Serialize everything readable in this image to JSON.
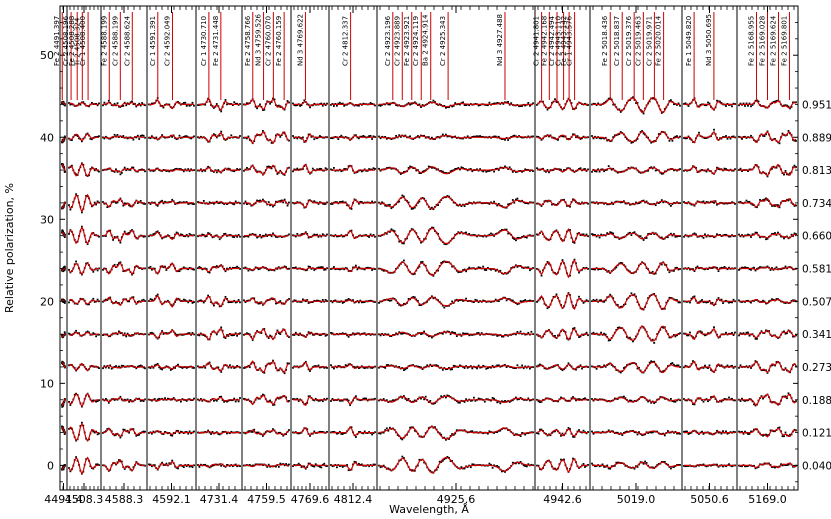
{
  "chart_data": {
    "type": "scatter",
    "title": "",
    "xlabel": "Wavelength, Å",
    "ylabel": "Relative polarization, %",
    "ylim": [
      -3,
      56
    ],
    "y_ticks": [
      0,
      10,
      20,
      30,
      40,
      50
    ],
    "grid": false,
    "legend": "none",
    "colors": {
      "observed": "#000000",
      "model": "#cc0000",
      "line_marker": "#cc0000",
      "frame": "#000000"
    },
    "phases": [
      "0.040",
      "0.121",
      "0.188",
      "0.273",
      "0.341",
      "0.507",
      "0.581",
      "0.660",
      "0.734",
      "0.813",
      "0.889",
      "0.951"
    ],
    "offsets": [
      0,
      4,
      8,
      12,
      16,
      20,
      24,
      28,
      32,
      36,
      40,
      44
    ],
    "panels": [
      {
        "label": "4491.4",
        "lines": [
          {
            "text": "Fe 2 4491.397",
            "rel": 0.32
          }
        ]
      },
      {
        "label": "4508.3",
        "lines": [
          {
            "text": "Cr 2 4508.196",
            "rel": 0.12
          },
          {
            "text": "Fe 2 4508.288",
            "rel": 0.3
          },
          {
            "text": "Ti 2 4508.324",
            "rel": 0.45
          },
          {
            "text": "Cr 1 4508.400",
            "rel": 0.62
          }
        ]
      },
      {
        "label": "4588.3",
        "lines": [
          {
            "text": "Fe 2 4588.199",
            "rel": 0.18
          },
          {
            "text": "Cr 2 4588.199",
            "rel": 0.42
          },
          {
            "text": "Cr 2 4588.624",
            "rel": 0.68
          }
        ]
      },
      {
        "label": "4592.1",
        "lines": [
          {
            "text": "Cr 1 4591.391",
            "rel": 0.22
          },
          {
            "text": "Cr 2 4592.049",
            "rel": 0.52
          }
        ]
      },
      {
        "label": "4731.4",
        "lines": [
          {
            "text": "Cr 1 4730.710",
            "rel": 0.28
          },
          {
            "text": "Fe 2 4731.448",
            "rel": 0.54
          }
        ]
      },
      {
        "label": "4759.5",
        "lines": [
          {
            "text": "Fe 2 4758.766",
            "rel": 0.22
          },
          {
            "text": "Nd 3 4759.526",
            "rel": 0.44
          },
          {
            "text": "Cr 2 4760.070",
            "rel": 0.64
          },
          {
            "text": "Fe 2 4760.159",
            "rel": 0.86
          }
        ]
      },
      {
        "label": "4769.6",
        "lines": [
          {
            "text": "Nd 3 4769.622",
            "rel": 0.38
          }
        ]
      },
      {
        "label": "4812.4",
        "lines": [
          {
            "text": "Cr 2 4812.337",
            "rel": 0.45
          }
        ]
      },
      {
        "label": "4925.6",
        "lines": [
          {
            "text": "Cr 2 4923.196",
            "rel": 0.1
          },
          {
            "text": "Cr 2 4923.889",
            "rel": 0.16
          },
          {
            "text": "Fe 2 4923.921",
            "rel": 0.22
          },
          {
            "text": "Cr 2 4924.119",
            "rel": 0.28
          },
          {
            "text": "Ba 2 4924.914",
            "rel": 0.34
          },
          {
            "text": "Cr 2 4925.343",
            "rel": 0.45
          },
          {
            "text": "Nd 3 4927.488",
            "rel": 0.81
          }
        ]
      },
      {
        "label": "4942.6",
        "lines": [
          {
            "text": "Cr 2 4941.801",
            "rel": 0.12
          },
          {
            "text": "Fe 2 4942.168",
            "rel": 0.26
          },
          {
            "text": "Cr 2 4942.494",
            "rel": 0.4
          },
          {
            "text": "Cr 2 4943.110",
            "rel": 0.52
          },
          {
            "text": "Fe 2 4943.142",
            "rel": 0.62
          },
          {
            "text": "Cr 1 4943.576",
            "rel": 0.72
          }
        ]
      },
      {
        "label": "5019.0",
        "lines": [
          {
            "text": "Fe 2 5018.436",
            "rel": 0.22
          },
          {
            "text": "Cr 2 5018.837",
            "rel": 0.35
          },
          {
            "text": "Cr 2 5019.376",
            "rel": 0.48
          },
          {
            "text": "Cr 2 5019.463",
            "rel": 0.58
          },
          {
            "text": "Cr 2 5019.971",
            "rel": 0.7
          },
          {
            "text": "Fe 2 5020.014",
            "rel": 0.8
          }
        ]
      },
      {
        "label": "5050.6",
        "lines": [
          {
            "text": "Fe 1 5049.820",
            "rel": 0.22
          },
          {
            "text": "Nd 3 5050.695",
            "rel": 0.58
          }
        ]
      },
      {
        "label": "5169.0",
        "lines": [
          {
            "text": "Fe 2 5168.955",
            "rel": 0.32
          },
          {
            "text": "Fe 2 5169.028",
            "rel": 0.5
          },
          {
            "text": "Fe 2 5169.624",
            "rel": 0.68
          },
          {
            "text": "Fe 2 5169.801",
            "rel": 0.86
          }
        ]
      }
    ]
  }
}
